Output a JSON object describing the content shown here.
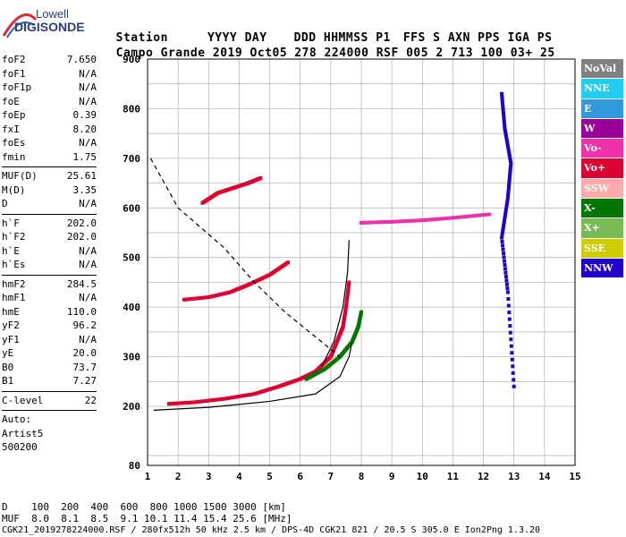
{
  "logo": {
    "line1": "Lowell",
    "line2": "DIGISONDE"
  },
  "header": {
    "labels": [
      "Station",
      "YYYY",
      "DAY",
      "DDD",
      "HHMMSS",
      "P1",
      "FFS",
      "S",
      "AXN",
      "PPS",
      "IGA",
      "PS"
    ],
    "values": [
      "Campo Grande",
      "2019",
      "Oct05",
      "278",
      "224000",
      "RSF",
      "005",
      "2",
      "713",
      "100",
      "03+",
      "25"
    ]
  },
  "params": {
    "group1": [
      {
        "name": "foF2",
        "value": "7.650"
      },
      {
        "name": "foF1",
        "value": "N/A"
      },
      {
        "name": "foF1p",
        "value": "N/A"
      },
      {
        "name": "foE",
        "value": "N/A"
      },
      {
        "name": "foEp",
        "value": "0.39"
      },
      {
        "name": "fxI",
        "value": "8.20"
      },
      {
        "name": "foEs",
        "value": "N/A"
      },
      {
        "name": "fmin",
        "value": "1.75"
      }
    ],
    "group2": [
      {
        "name": "MUF(D)",
        "value": "25.61"
      },
      {
        "name": "M(D)",
        "value": "3.35"
      },
      {
        "name": "D",
        "value": "N/A"
      }
    ],
    "group3": [
      {
        "name": "h`F",
        "value": "202.0"
      },
      {
        "name": "h`F2",
        "value": "202.0"
      },
      {
        "name": "h`E",
        "value": "N/A"
      },
      {
        "name": "h`Es",
        "value": "N/A"
      }
    ],
    "group4": [
      {
        "name": "hmF2",
        "value": "284.5"
      },
      {
        "name": "hmF1",
        "value": "N/A"
      },
      {
        "name": "hmE",
        "value": "110.0"
      },
      {
        "name": "yF2",
        "value": "96.2"
      },
      {
        "name": "yF1",
        "value": "N/A"
      },
      {
        "name": "yE",
        "value": "20.0"
      },
      {
        "name": "B0",
        "value": "73.7"
      },
      {
        "name": "B1",
        "value": "7.27"
      }
    ],
    "group5": [
      {
        "name": "C-level",
        "value": "22"
      }
    ],
    "footer_lines": [
      "Auto:",
      "Artist5",
      "500200"
    ]
  },
  "legend": [
    {
      "label": "NoVal",
      "color": "#808080"
    },
    {
      "label": "NNE",
      "color": "#22ccee"
    },
    {
      "label": "E",
      "color": "#3399dd"
    },
    {
      "label": "W",
      "color": "#990099"
    },
    {
      "label": "Vo-",
      "color": "#ee33aa"
    },
    {
      "label": "Vo+",
      "color": "#dd0033"
    },
    {
      "label": "SSW",
      "color": "#ffaaaa"
    },
    {
      "label": "X-",
      "color": "#007700"
    },
    {
      "label": "X+",
      "color": "#77bb55"
    },
    {
      "label": "SSE",
      "color": "#cccc00"
    },
    {
      "label": "NNW",
      "color": "#2200cc"
    }
  ],
  "chart_data": {
    "type": "scatter",
    "xlim": [
      1,
      15
    ],
    "ylim": [
      80,
      900
    ],
    "x_ticks": [
      "1",
      "2",
      "3",
      "4",
      "5",
      "6",
      "7",
      "8",
      "9",
      "10",
      "11",
      "12",
      "13",
      "14",
      "15"
    ],
    "y_ticks": [
      "80",
      "200",
      "300",
      "400",
      "500",
      "600",
      "700",
      "800",
      "900"
    ],
    "traces": [
      {
        "name": "o-trace",
        "color": "#dd0033",
        "x": [
          1.7,
          2.5,
          3.5,
          4.5,
          5.3,
          6.0,
          6.5,
          7.0,
          7.2,
          7.4,
          7.5,
          7.6
        ],
        "y": [
          205,
          208,
          215,
          225,
          240,
          255,
          270,
          300,
          330,
          360,
          400,
          450
        ]
      },
      {
        "name": "x-trace",
        "color": "#007700",
        "x": [
          6.2,
          6.8,
          7.3,
          7.7,
          7.9,
          8.0
        ],
        "y": [
          255,
          275,
          300,
          330,
          360,
          390
        ]
      },
      {
        "name": "w-trace-high",
        "color": "#dd0033",
        "x": [
          2.8,
          3.3,
          3.8,
          4.3,
          4.7
        ],
        "y": [
          610,
          630,
          640,
          650,
          660
        ]
      },
      {
        "name": "w-trace-mid",
        "color": "#dd0033",
        "x": [
          2.2,
          3.0,
          3.7,
          4.3,
          5.0,
          5.6
        ],
        "y": [
          415,
          420,
          430,
          445,
          465,
          490
        ]
      },
      {
        "name": "flat-585",
        "color": "#ee33aa",
        "x": [
          8.0,
          9.0,
          10.0,
          11.0,
          12.2
        ],
        "y": [
          570,
          572,
          575,
          580,
          587
        ]
      },
      {
        "name": "nnw-line",
        "color": "#2200cc",
        "x": [
          12.6,
          12.7,
          12.9,
          12.8,
          12.6,
          12.8,
          13.0
        ],
        "y": [
          830,
          760,
          690,
          620,
          540,
          430,
          240
        ]
      }
    ],
    "model_curve_solid": {
      "x": [
        1.2,
        3.0,
        5.0,
        6.5,
        7.3,
        7.6,
        7.7
      ],
      "y": [
        192,
        198,
        210,
        225,
        260,
        300,
        330
      ]
    },
    "model_curve_solid_upper": {
      "x": [
        6.7,
        7.1,
        7.4,
        7.55,
        7.6
      ],
      "y": [
        280,
        330,
        400,
        470,
        535
      ]
    },
    "model_curve_dashed": {
      "x": [
        1.1,
        2.0,
        3.5,
        4.5,
        5.5,
        6.5,
        7.3
      ],
      "y": [
        700,
        600,
        520,
        450,
        390,
        340,
        300
      ]
    }
  },
  "bottom": {
    "row1_label": "D",
    "row1_values": "100  200  400  600  800 1000 1500 3000 [km]",
    "row2_label": "MUF",
    "row2_values": "8.0  8.1  8.5  9.1 10.1 11.4 15.4 25.6 [MHz]",
    "footer": "CGK21_2019278224000.RSF / 280fx512h 50 kHz 2.5 km / DPS-4D CGK21 821 / 20.5 S 305.0 E Ion2Png 1.3.20"
  }
}
